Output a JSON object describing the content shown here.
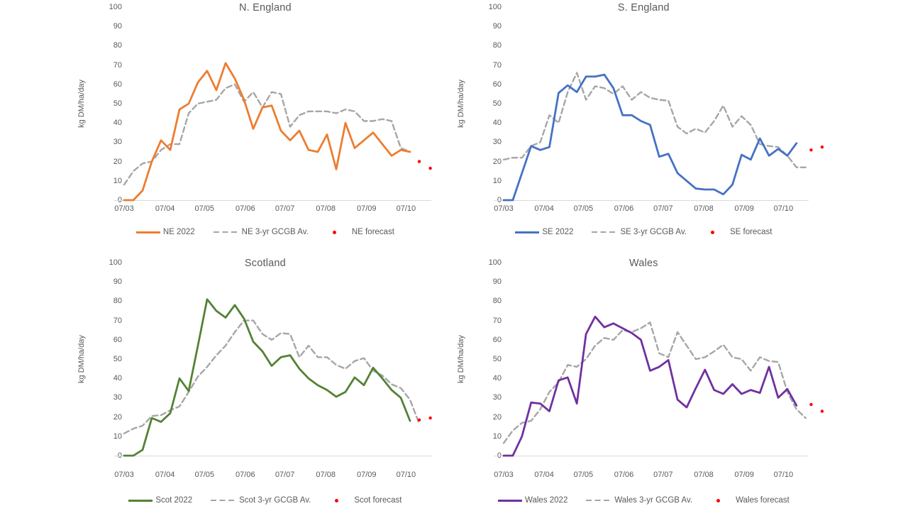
{
  "page": {
    "background": "#ffffff"
  },
  "colors": {
    "ne_2022": "#ED7D31",
    "se_2022": "#4472C4",
    "scot_2022": "#548235",
    "wales_2022": "#7030A0",
    "gcgb_average": "#A6A6A6",
    "forecast": "#FF0000",
    "axis_line": "#D9D9D9",
    "text": "#595959"
  },
  "chart_data": [
    {
      "type": "line",
      "title": "N. England",
      "xlabel": "",
      "ylabel": "kg DM/ha/day",
      "ylim": [
        0,
        100
      ],
      "y_tick_step": 10,
      "grid": false,
      "legend_position": "bottom",
      "x_tick_labels": [
        "07/03",
        "07/04",
        "07/05",
        "07/06",
        "07/07",
        "07/08",
        "07/09",
        "07/10"
      ],
      "x_tick_weeks": [
        0,
        4.43,
        8.71,
        13.14,
        17.43,
        21.86,
        26.29,
        30.57
      ],
      "series": [
        {
          "name": "NE 2022",
          "style": "solid",
          "color": "#ED7D31",
          "start_week": 0,
          "values": [
            0,
            0,
            5,
            20,
            31,
            26,
            47,
            50,
            61,
            67,
            57,
            71,
            63,
            52,
            37,
            48,
            49,
            36,
            31,
            36,
            26,
            25,
            34,
            16,
            40,
            27,
            31,
            35,
            29,
            23,
            26,
            25
          ]
        },
        {
          "name": "NE 3-yr GCGB Av.",
          "style": "dashed",
          "color": "#A6A6A6",
          "start_week": 0,
          "values": [
            8,
            15,
            19,
            20,
            26,
            29,
            29,
            45,
            50,
            51,
            52,
            58,
            60,
            51,
            56,
            48,
            56,
            55,
            38,
            44,
            46,
            46,
            46,
            45,
            47,
            46,
            41,
            41,
            42,
            41,
            27,
            25
          ]
        },
        {
          "name": "NE forecast",
          "style": "points",
          "color": "#FF0000",
          "weeks": [
            32,
            33.2
          ],
          "values": [
            20,
            16.5
          ]
        }
      ]
    },
    {
      "type": "line",
      "title": "S. England",
      "xlabel": "",
      "ylabel": "kg DM/ha/day",
      "ylim": [
        0,
        100
      ],
      "y_tick_step": 10,
      "grid": false,
      "legend_position": "bottom",
      "x_tick_labels": [
        "07/03",
        "07/04",
        "07/05",
        "07/06",
        "07/07",
        "07/08",
        "07/09",
        "07/10"
      ],
      "x_tick_weeks": [
        0,
        4.43,
        8.71,
        13.14,
        17.43,
        21.86,
        26.29,
        30.57
      ],
      "series": [
        {
          "name": "SE 2022",
          "style": "solid",
          "color": "#4472C4",
          "start_week": 0,
          "values": [
            0,
            0,
            14,
            28,
            26,
            27.5,
            55.5,
            59.5,
            56,
            64,
            64,
            65,
            58,
            44,
            44,
            41,
            39,
            22.5,
            24,
            14,
            10,
            6,
            5.5,
            5.5,
            3,
            8,
            23.5,
            21,
            32,
            23,
            26.5,
            23,
            29.5
          ]
        },
        {
          "name": "SE 3-yr GCGB Av.",
          "style": "dashed",
          "color": "#A6A6A6",
          "start_week": 0,
          "values": [
            21,
            22,
            22,
            28,
            30,
            44,
            40,
            56,
            66,
            52,
            59,
            58,
            55,
            59,
            52,
            56,
            53,
            52,
            51.5,
            38,
            34.5,
            37,
            35,
            41,
            49,
            38,
            43.5,
            39,
            29,
            28,
            27.5,
            23,
            17,
            17
          ]
        },
        {
          "name": "SE forecast",
          "style": "points",
          "color": "#FF0000",
          "weeks": [
            33.6,
            34.8
          ],
          "values": [
            26,
            27.5
          ]
        }
      ]
    },
    {
      "type": "line",
      "title": "Scotland",
      "xlabel": "",
      "ylabel": "kg DM/ha/day",
      "ylim": [
        0,
        100
      ],
      "y_tick_step": 10,
      "grid": false,
      "legend_position": "bottom",
      "x_tick_labels": [
        "07/03",
        "07/04",
        "07/05",
        "07/06",
        "07/07",
        "07/08",
        "07/09",
        "07/10"
      ],
      "x_tick_weeks": [
        0,
        4.43,
        8.71,
        13.14,
        17.43,
        21.86,
        26.29,
        30.57
      ],
      "series": [
        {
          "name": "Scot 2022",
          "style": "solid",
          "color": "#548235",
          "start_week": 0,
          "values": [
            0,
            0,
            3,
            19.5,
            17.5,
            22,
            40,
            33.5,
            57,
            81,
            75,
            71.5,
            78,
            71,
            59,
            54,
            46.5,
            51,
            52,
            45,
            40,
            36.5,
            34,
            30.5,
            33,
            40.5,
            36.5,
            45.5,
            40,
            34,
            30,
            18
          ]
        },
        {
          "name": "Scot 3-yr GCGB Av.",
          "style": "dashed",
          "color": "#A6A6A6",
          "start_week": 0,
          "values": [
            11.5,
            14,
            15.5,
            20.5,
            21,
            23.5,
            25.5,
            33,
            41,
            46,
            52,
            57,
            64,
            70,
            70,
            63,
            60,
            63.5,
            63,
            51,
            57,
            51,
            51,
            47,
            45,
            49,
            50.5,
            44,
            41.5,
            37,
            35,
            29,
            16.5
          ]
        },
        {
          "name": "Scot forecast",
          "style": "points",
          "color": "#FF0000",
          "weeks": [
            32,
            33.2
          ],
          "values": [
            18.5,
            19.5
          ]
        }
      ]
    },
    {
      "type": "line",
      "title": "Wales",
      "xlabel": "",
      "ylabel": "kg DM/ha/day",
      "ylim": [
        0,
        100
      ],
      "y_tick_step": 10,
      "grid": false,
      "legend_position": "bottom",
      "x_tick_labels": [
        "07/03",
        "07/04",
        "07/05",
        "07/06",
        "07/07",
        "07/08",
        "07/09",
        "07/10"
      ],
      "x_tick_weeks": [
        0,
        4.43,
        8.71,
        13.14,
        17.43,
        21.86,
        26.29,
        30.57
      ],
      "series": [
        {
          "name": "Wales 2022",
          "style": "solid",
          "color": "#7030A0",
          "start_week": 0,
          "values": [
            0,
            0,
            10,
            27.5,
            27,
            23,
            39,
            40.5,
            27,
            63,
            72,
            66.5,
            68.5,
            66,
            63.5,
            60,
            44,
            46,
            49.5,
            29,
            25,
            35,
            44.5,
            34,
            32,
            37,
            32,
            34,
            32.5,
            46,
            30,
            34.5,
            26
          ]
        },
        {
          "name": "Wales 3-yr GCGB Av.",
          "style": "dashed",
          "color": "#A6A6A6",
          "start_week": 0,
          "values": [
            6.5,
            13,
            17,
            18,
            24,
            33,
            38,
            47,
            46,
            50,
            57,
            61,
            60,
            65,
            64,
            66,
            69,
            53,
            51,
            64,
            57,
            50,
            51,
            54,
            57.5,
            51,
            50,
            44,
            51,
            49,
            48.5,
            33,
            24,
            19.5
          ]
        },
        {
          "name": "Wales forecast",
          "style": "points",
          "color": "#FF0000",
          "weeks": [
            33.6,
            34.8
          ],
          "values": [
            26.5,
            23
          ]
        }
      ]
    }
  ]
}
